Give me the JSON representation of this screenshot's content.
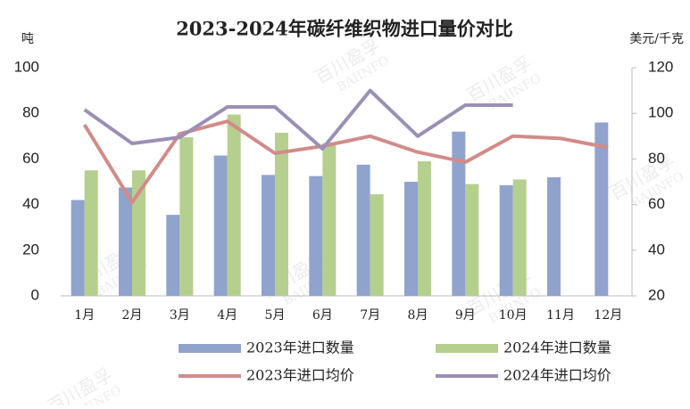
{
  "chart_data": {
    "type": "bar",
    "title": "2023-2024年碳纤维织物进口量价对比",
    "y_label": "吨",
    "y2_label": "美元/千克",
    "watermark": [
      "百川盈孚",
      "BAIINFO"
    ],
    "categories": [
      "1月",
      "2月",
      "3月",
      "4月",
      "5月",
      "6月",
      "7月",
      "8月",
      "9月",
      "10月",
      "11月",
      "12月"
    ],
    "ylim": [
      0,
      100
    ],
    "yticks": [
      0,
      20,
      40,
      60,
      80,
      100
    ],
    "y2lim": [
      20,
      120
    ],
    "y2ticks": [
      20,
      40,
      60,
      80,
      100,
      120
    ],
    "legend": "bottom",
    "series": [
      {
        "name": "2023年进口数量",
        "type": "bar",
        "color": "#8fa3cc",
        "values": [
          42,
          47.5,
          35.5,
          61.5,
          53,
          52.5,
          57.5,
          50,
          72,
          48.5,
          52,
          76
        ]
      },
      {
        "name": "2024年进口数量",
        "type": "bar",
        "color": "#b5cf8e",
        "values": [
          55,
          55,
          69.5,
          79.5,
          71.5,
          67,
          44.5,
          59,
          49,
          51,
          null,
          null
        ]
      },
      {
        "name": "2023年进口均价",
        "type": "line",
        "axis": "y2",
        "color": "#d28b88",
        "values": [
          95,
          61,
          91,
          96.5,
          82.5,
          85.6,
          90,
          83,
          78.6,
          90,
          89,
          85
        ]
      },
      {
        "name": "2024年进口均价",
        "type": "line",
        "axis": "y2",
        "color": "#9c8fb5",
        "values": [
          101.6,
          86.8,
          89.5,
          102.8,
          102.8,
          84.5,
          110,
          90,
          103.6,
          103.6,
          null,
          null
        ]
      }
    ]
  }
}
